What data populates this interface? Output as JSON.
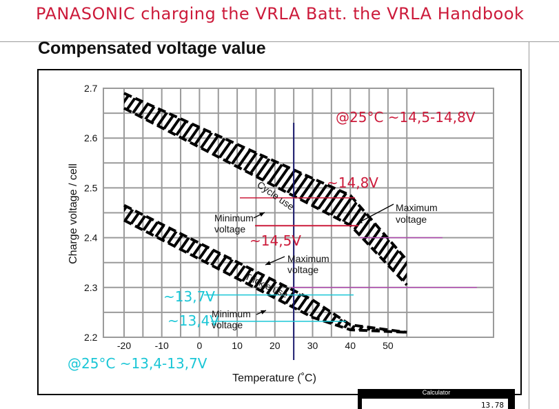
{
  "page": {
    "headline": "PANASONIC charging the VRLA Batt. the VRLA Handbook"
  },
  "chart_data": {
    "type": "line",
    "title": "Compensated voltage value",
    "xlabel": "Temperature  (˚C)",
    "ylabel": "Charge voltage / cell",
    "xlim": [
      -20,
      55
    ],
    "ylim": [
      2.2,
      2.7
    ],
    "x_ticks": [
      -20,
      -10,
      0,
      10,
      20,
      30,
      40,
      50
    ],
    "y_ticks": [
      2.2,
      2.3,
      2.4,
      2.5,
      2.6,
      2.7
    ],
    "grid": true,
    "series": [
      {
        "name": "Cycle use",
        "band": true,
        "x": [
          -20,
          40,
          55
        ],
        "upper": [
          2.69,
          2.485,
          2.355
        ],
        "lower": [
          2.66,
          2.425,
          2.305
        ]
      },
      {
        "name": "Trickle use",
        "band": true,
        "x": [
          -20,
          30,
          40,
          55
        ],
        "upper": [
          2.465,
          2.275,
          2.225,
          2.21
        ],
        "lower": [
          2.435,
          2.24,
          2.215,
          2.21
        ]
      }
    ],
    "annotations": {
      "cycle_label": "Cycle use",
      "trickle_label": "Trickle use",
      "max_cycle": [
        "Maximum",
        "voltage"
      ],
      "min_cycle": [
        "Minimum",
        "voltage"
      ],
      "max_trickle": [
        "Maximum",
        "voltage"
      ],
      "min_trickle": [
        "Minimum",
        "voltage"
      ]
    },
    "overlays": {
      "label_25c_cycle": "@25°C ~14,5-14,8V",
      "label_148": "~14,8V",
      "label_145": "~14,5V",
      "label_137": "~13,7V",
      "label_134": "~13,4V",
      "label_25c_trickle": "@25°C ~13,4-13,7V",
      "marker_x": 25,
      "colors": {
        "red": "#cc1a3a",
        "cyan": "#1ac6d6",
        "magenta": "#b04ab0",
        "navy": "#1a1a6e",
        "grid": "#9a9a9a",
        "hatch": "#000000"
      }
    }
  },
  "calculator": {
    "title": "Calculator",
    "display": "13.78"
  }
}
